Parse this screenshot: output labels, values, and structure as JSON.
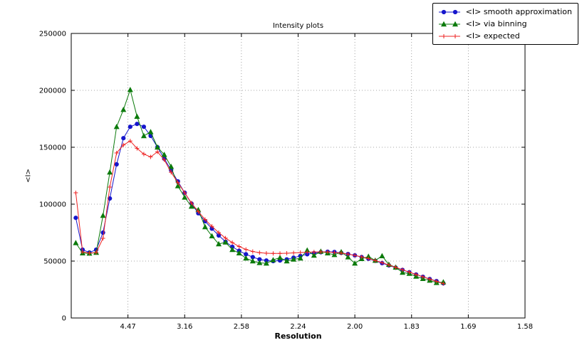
{
  "chart_data": {
    "type": "line",
    "title": "Intensity plots",
    "xlabel": "Resolution",
    "ylabel": "<I>",
    "grid": true,
    "legend_position": "top-right",
    "x_axis": {
      "lim": [
        0.0,
        0.4
      ],
      "note": "linear in 1/d^2, tick labels give resolution d in Angstrom",
      "ticks": [
        {
          "pos": 0.05,
          "label": "4.47"
        },
        {
          "pos": 0.1,
          "label": "3.16"
        },
        {
          "pos": 0.15,
          "label": "2.58"
        },
        {
          "pos": 0.2,
          "label": "2.24"
        },
        {
          "pos": 0.25,
          "label": "2.00"
        },
        {
          "pos": 0.3,
          "label": "1.83"
        },
        {
          "pos": 0.35,
          "label": "1.69"
        },
        {
          "pos": 0.4,
          "label": "1.58"
        }
      ]
    },
    "y_axis": {
      "lim": [
        0,
        250000
      ],
      "ticks": [
        {
          "value": 0,
          "label": "0"
        },
        {
          "value": 50000,
          "label": "50000"
        },
        {
          "value": 100000,
          "label": "100000"
        },
        {
          "value": 150000,
          "label": "150000"
        },
        {
          "value": 200000,
          "label": "200000"
        },
        {
          "value": 250000,
          "label": "250000"
        }
      ]
    },
    "x": [
      0.004,
      0.01,
      0.016,
      0.022,
      0.028,
      0.034,
      0.04,
      0.046,
      0.052,
      0.058,
      0.064,
      0.07,
      0.076,
      0.082,
      0.088,
      0.094,
      0.1,
      0.106,
      0.112,
      0.118,
      0.124,
      0.13,
      0.136,
      0.142,
      0.148,
      0.154,
      0.16,
      0.166,
      0.172,
      0.178,
      0.184,
      0.19,
      0.196,
      0.202,
      0.208,
      0.214,
      0.22,
      0.226,
      0.232,
      0.238,
      0.244,
      0.25,
      0.256,
      0.262,
      0.268,
      0.274,
      0.28,
      0.286,
      0.292,
      0.298,
      0.304,
      0.31,
      0.316,
      0.322,
      0.328
    ],
    "series": [
      {
        "name": "<I> smooth approximation",
        "color": "#1515cc",
        "marker": "circle",
        "values": [
          88000,
          60000,
          57500,
          60000,
          75000,
          105000,
          135000,
          158000,
          168000,
          170500,
          168000,
          160000,
          150000,
          140000,
          130000,
          120000,
          110000,
          100500,
          92000,
          85000,
          78500,
          72500,
          67000,
          62500,
          59000,
          56000,
          53500,
          51500,
          50500,
          50000,
          50500,
          51500,
          53000,
          54500,
          56000,
          57000,
          57800,
          58200,
          58000,
          57200,
          56200,
          55000,
          53500,
          52000,
          50200,
          48200,
          46200,
          44200,
          42200,
          40200,
          38200,
          36200,
          34200,
          32400,
          30500
        ]
      },
      {
        "name": "<I> via binning",
        "color": "#0b7a0b",
        "marker": "triangle",
        "values": [
          66000,
          57000,
          56800,
          57500,
          90000,
          128000,
          168000,
          183000,
          200500,
          177000,
          160000,
          163500,
          150000,
          143500,
          133000,
          116000,
          106000,
          98000,
          95000,
          80000,
          72000,
          65000,
          66500,
          60000,
          57000,
          52500,
          50000,
          48500,
          48000,
          51000,
          53000,
          50000,
          51500,
          52500,
          59500,
          55000,
          58500,
          57000,
          55500,
          58000,
          53500,
          48000,
          52000,
          54000,
          50500,
          54500,
          47000,
          44500,
          40000,
          39000,
          36500,
          34500,
          33000,
          31000,
          31500
        ]
      },
      {
        "name": "<I> expected",
        "color": "#ee2222",
        "marker": "plus",
        "values": [
          110000,
          58000,
          57000,
          57500,
          70000,
          115000,
          145000,
          152000,
          155500,
          149000,
          144000,
          141500,
          146000,
          139000,
          128000,
          119000,
          110000,
          101000,
          93500,
          86500,
          80500,
          75000,
          70200,
          66200,
          62800,
          60200,
          58400,
          57400,
          56900,
          56700,
          56700,
          56900,
          57200,
          57500,
          57800,
          58000,
          58100,
          58000,
          57600,
          57000,
          56100,
          55000,
          53700,
          52200,
          50500,
          48600,
          46600,
          44500,
          42400,
          40300,
          38200,
          36200,
          34200,
          32200,
          30200
        ]
      }
    ]
  }
}
